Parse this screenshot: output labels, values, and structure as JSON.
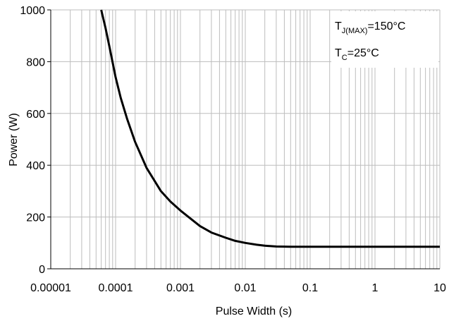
{
  "chart_data": {
    "type": "line",
    "title": "",
    "xlabel": "Pulse Width (s)",
    "ylabel": "Power (W)",
    "x_scale": "log",
    "xlim": [
      1e-05,
      10
    ],
    "ylim": [
      0,
      1000
    ],
    "grid": true,
    "x_ticks": [
      "0.00001",
      "0.0001",
      "0.001",
      "0.01",
      "0.1",
      "1",
      "10"
    ],
    "y_ticks": [
      "0",
      "200",
      "400",
      "600",
      "800",
      "1000"
    ],
    "annotations": [
      {
        "main": "T",
        "sub": "J(MAX)",
        "rest": "=150°C"
      },
      {
        "main": "T",
        "sub": "C",
        "rest": "=25°C"
      }
    ],
    "series": [
      {
        "color": "#000000",
        "x": [
          6e-05,
          7e-05,
          8e-05,
          0.0001,
          0.00012,
          0.00015,
          0.0002,
          0.0003,
          0.0005,
          0.0007,
          0.001,
          0.0015,
          0.002,
          0.003,
          0.005,
          0.007,
          0.01,
          0.015,
          0.02,
          0.03,
          0.05,
          0.1,
          0.3,
          1,
          3,
          10
        ],
        "y": [
          1000,
          930,
          860,
          740,
          660,
          580,
          490,
          390,
          300,
          260,
          225,
          190,
          165,
          140,
          120,
          108,
          100,
          93,
          89,
          86,
          85,
          85,
          85,
          85,
          85,
          85
        ]
      }
    ]
  }
}
